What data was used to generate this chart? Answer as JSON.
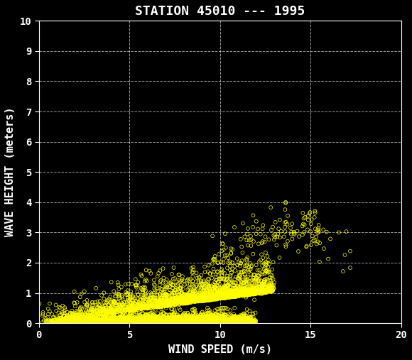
{
  "title": "STATION 45010 --- 1995",
  "xlabel": "WIND SPEED (m/s)",
  "ylabel": "WAVE HEIGHT (meters)",
  "xlim": [
    0,
    20
  ],
  "ylim": [
    0,
    10
  ],
  "xticks": [
    0,
    5,
    10,
    15,
    20
  ],
  "yticks": [
    0,
    1,
    2,
    3,
    4,
    5,
    6,
    7,
    8,
    9,
    10
  ],
  "background_color": "#000000",
  "text_color": "#ffffff",
  "marker_color": "#ffff00",
  "marker_size": 3.5,
  "marker_linewidth": 0.5,
  "grid_color": "#ffffff",
  "grid_linestyle": "--",
  "grid_alpha": 0.6,
  "title_fontsize": 13,
  "label_fontsize": 11,
  "tick_fontsize": 10,
  "seed": 42
}
